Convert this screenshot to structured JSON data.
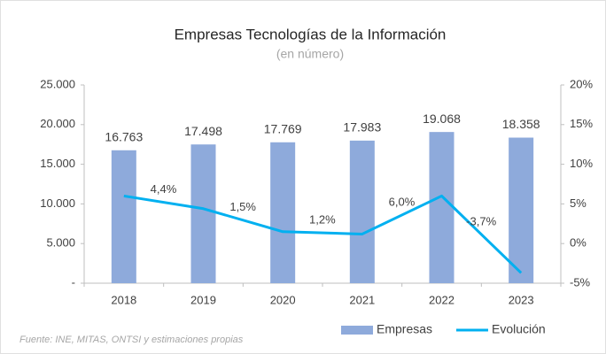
{
  "chart_data": {
    "type": "bar_line",
    "title": "Empresas Tecnologías de la Información",
    "subtitle": "(en número)",
    "source": "Fuente: INE, MITAS, ONTSI y estimaciones propias",
    "categories": [
      "2018",
      "2019",
      "2020",
      "2021",
      "2022",
      "2023"
    ],
    "series": [
      {
        "name": "Empresas",
        "color": "#8eaadb",
        "kind": "bar",
        "values": [
          16763,
          17498,
          17769,
          17983,
          19068,
          18358
        ],
        "value_labels": [
          "16.763",
          "17.498",
          "17.769",
          "17.983",
          "19.068",
          "18.358"
        ]
      },
      {
        "name": "Evolución",
        "color": "#00b0f0",
        "kind": "line",
        "axis": "y2",
        "values": [
          6.0,
          4.4,
          1.5,
          1.2,
          6.0,
          -3.7
        ],
        "value_labels": [
          null,
          "4,4%",
          "1,5%",
          "1,2%",
          "6,0%",
          "-3,7%"
        ]
      }
    ],
    "ylim": [
      0,
      25000
    ],
    "yticks": [
      {
        "value": 0,
        "label": "-"
      },
      {
        "value": 5000,
        "label": "5.000"
      },
      {
        "value": 10000,
        "label": "10.000"
      },
      {
        "value": 15000,
        "label": "15.000"
      },
      {
        "value": 20000,
        "label": "20.000"
      },
      {
        "value": 25000,
        "label": "25.000"
      }
    ],
    "y2lim": [
      -5,
      20
    ],
    "y2ticks": [
      {
        "value": -5,
        "label": "-5%"
      },
      {
        "value": 0,
        "label": "0%"
      },
      {
        "value": 5,
        "label": "5%"
      },
      {
        "value": 10,
        "label": "10%"
      },
      {
        "value": 15,
        "label": "15%"
      },
      {
        "value": 20,
        "label": "20%"
      }
    ],
    "grid": false,
    "legend": "bottom-right"
  }
}
